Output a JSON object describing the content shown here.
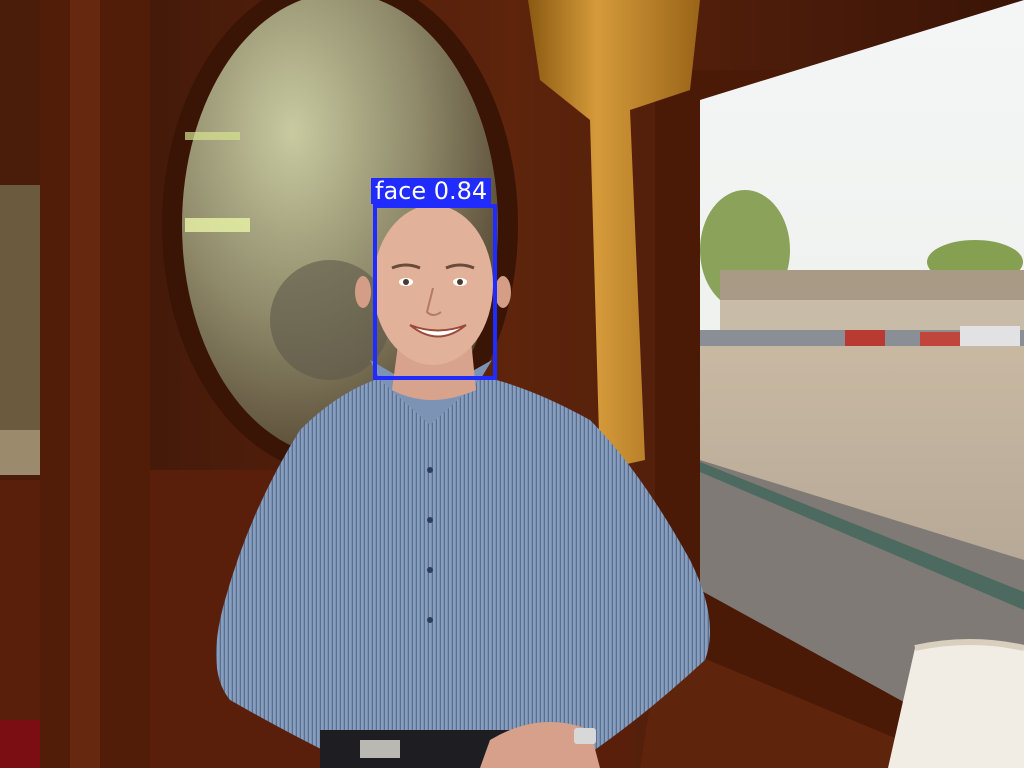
{
  "detections": [
    {
      "label": "face",
      "score_text": "0.84",
      "color": "#1f2bff"
    }
  ]
}
